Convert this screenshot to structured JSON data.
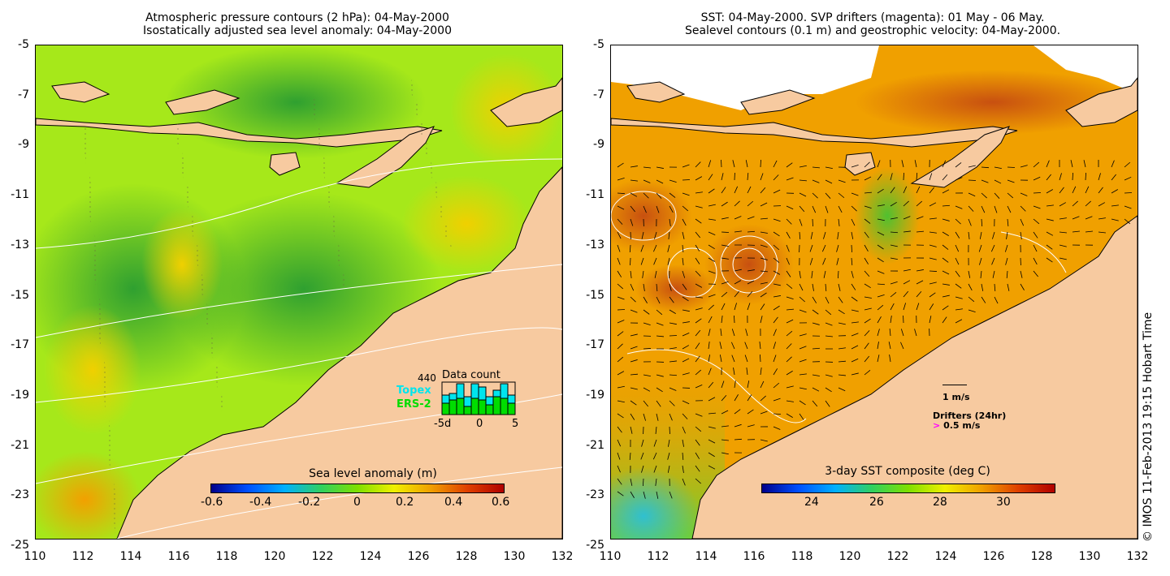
{
  "left_panel": {
    "title_line1": "Atmospheric pressure contours (2 hPa): 04-May-2000",
    "title_line2": "Isostatically adjusted sea level anomaly: 04-May-2000",
    "colorbar_label": "Sea level anomaly (m)",
    "colorbar_ticks": [
      "-0.6",
      "-0.4",
      "-0.2",
      "0",
      "0.2",
      "0.4",
      "0.6"
    ],
    "inset": {
      "count": "440",
      "topex_label": "Topex",
      "ers_label": "ERS-2",
      "title": "Data count",
      "x_ticks": [
        "-5d",
        "0",
        "5"
      ],
      "topex_color": "#00e5ee",
      "ers_color": "#00dd00",
      "topex_fraction": [
        0.6,
        0.65,
        0.95,
        0.55,
        0.95,
        0.85,
        0.55,
        0.75,
        0.95,
        0.6
      ],
      "ers_fraction": [
        0.35,
        0.45,
        0.5,
        0.25,
        0.5,
        0.45,
        0.3,
        0.55,
        0.5,
        0.35
      ]
    }
  },
  "right_panel": {
    "title_line1": "SST: 04-May-2000. SVP drifters (magenta): 01 May - 06 May.",
    "title_line2": "Sealevel contours (0.1 m) and geostrophic velocity: 04-May-2000.",
    "colorbar_label": "3-day SST composite (deg C)",
    "colorbar_ticks": [
      "24",
      "26",
      "28",
      "30"
    ],
    "legend_velocity": "1 m/s",
    "legend_drifters": "Drifters (24hr)",
    "legend_drifter_speed": "0.5 m/s",
    "drifter_marker": ">"
  },
  "axes": {
    "x_ticks": [
      "110",
      "112",
      "114",
      "116",
      "118",
      "120",
      "122",
      "124",
      "126",
      "128",
      "130",
      "132"
    ],
    "y_ticks": [
      "-5",
      "-7",
      "-9",
      "-11",
      "-13",
      "-15",
      "-17",
      "-19",
      "-21",
      "-23",
      "-25"
    ]
  },
  "credit": "© IMOS 11-Feb-2013 19:15 Hobart Time",
  "colors": {
    "land": "#f7caa0",
    "sla_low": "#00008b",
    "sla_mid": "#7fe000",
    "sla_high": "#b00000",
    "sst_warm": "#f0a000",
    "cloud": "#ffffff"
  }
}
